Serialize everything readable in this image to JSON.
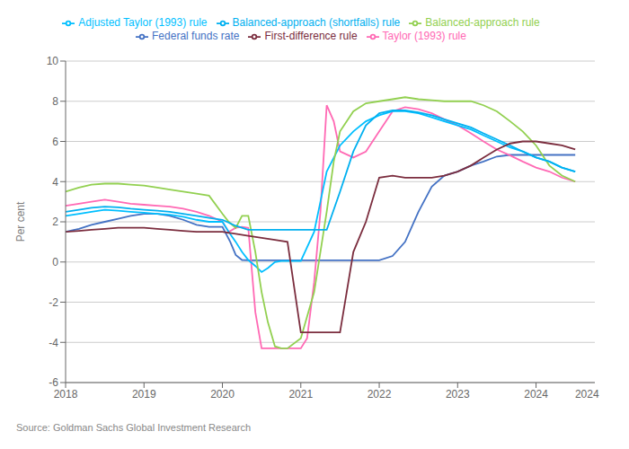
{
  "chart_data": {
    "type": "line",
    "ylabel": "Per cent",
    "source": "Source: Goldman Sachs Global Investment Research",
    "ylim": [
      -6,
      10
    ],
    "yticks": [
      -6,
      -4,
      -2,
      0,
      2,
      4,
      6,
      8,
      10
    ],
    "xlim": [
      2018.0,
      2024.75
    ],
    "xticks": [
      2018,
      2019,
      2020,
      2021,
      2022,
      2023,
      2024
    ],
    "grid": true,
    "legend": "top",
    "annotations": [
      {
        "text": "2024",
        "x": 2024.65
      }
    ],
    "series": [
      {
        "name": "Federal funds rate",
        "color": "#4472C4",
        "x": [
          2018.0,
          2018.17,
          2018.33,
          2018.5,
          2018.67,
          2018.83,
          2019.0,
          2019.17,
          2019.33,
          2019.5,
          2019.67,
          2019.83,
          2020.0,
          2020.1,
          2020.17,
          2020.25,
          2020.33,
          2020.5,
          2020.67,
          2020.83,
          2021.0,
          2021.17,
          2021.33,
          2021.5,
          2021.67,
          2021.83,
          2022.0,
          2022.17,
          2022.33,
          2022.5,
          2022.67,
          2022.83,
          2023.0,
          2023.17,
          2023.33,
          2023.5,
          2023.67,
          2023.83,
          2024.0,
          2024.17,
          2024.33,
          2024.5
        ],
        "values": [
          1.5,
          1.65,
          1.85,
          2.0,
          2.15,
          2.3,
          2.4,
          2.4,
          2.3,
          2.1,
          1.85,
          1.75,
          1.75,
          1.0,
          0.35,
          0.1,
          0.08,
          0.08,
          0.08,
          0.08,
          0.08,
          0.08,
          0.08,
          0.08,
          0.08,
          0.08,
          0.08,
          0.3,
          1.0,
          2.5,
          3.75,
          4.3,
          4.5,
          4.8,
          5.0,
          5.25,
          5.33,
          5.33,
          5.33,
          5.33,
          5.33,
          5.33
        ]
      },
      {
        "name": "Taylor (1993) rule",
        "color": "#FF69B4",
        "x": [
          2018.0,
          2018.17,
          2018.33,
          2018.5,
          2018.67,
          2018.83,
          2019.0,
          2019.17,
          2019.33,
          2019.5,
          2019.67,
          2019.83,
          2020.0,
          2020.08,
          2020.17,
          2020.25,
          2020.33,
          2020.42,
          2020.5,
          2021.0,
          2021.08,
          2021.17,
          2021.25,
          2021.33,
          2021.42,
          2021.5,
          2021.67,
          2021.83,
          2022.0,
          2022.17,
          2022.33,
          2022.5,
          2022.67,
          2022.83,
          2023.0,
          2023.17,
          2023.33,
          2023.5,
          2023.67,
          2023.83,
          2024.0,
          2024.17,
          2024.33,
          2024.5
        ],
        "values": [
          2.8,
          2.9,
          3.0,
          3.1,
          3.0,
          2.9,
          2.85,
          2.8,
          2.75,
          2.65,
          2.5,
          2.3,
          2.0,
          1.5,
          1.7,
          1.75,
          1.7,
          -2.5,
          -4.3,
          -4.3,
          -3.8,
          -1.0,
          2.5,
          7.8,
          7.0,
          5.5,
          5.2,
          5.5,
          6.5,
          7.5,
          7.7,
          7.6,
          7.4,
          7.1,
          6.8,
          6.4,
          6.0,
          5.6,
          5.3,
          5.0,
          4.7,
          4.5,
          4.2,
          4.0
        ]
      },
      {
        "name": "Adjusted Taylor (1993) rule",
        "color": "#00BFFF",
        "x": [
          2018.0,
          2018.17,
          2018.33,
          2018.5,
          2018.67,
          2018.83,
          2019.0,
          2019.17,
          2019.33,
          2019.5,
          2019.67,
          2019.83,
          2020.0,
          2020.08,
          2020.17,
          2020.25,
          2020.33,
          2020.42,
          2020.5,
          2020.58,
          2020.67,
          2020.75,
          2020.83,
          2021.0,
          2021.17,
          2021.25,
          2021.33,
          2021.5,
          2021.67,
          2021.83,
          2022.0,
          2022.17,
          2022.33,
          2022.5,
          2022.67,
          2022.83,
          2023.0,
          2023.17,
          2023.33,
          2023.5,
          2023.67,
          2023.83,
          2024.0,
          2024.17,
          2024.33,
          2024.5
        ],
        "values": [
          2.3,
          2.4,
          2.5,
          2.6,
          2.55,
          2.5,
          2.45,
          2.4,
          2.35,
          2.25,
          2.1,
          2.0,
          2.0,
          1.5,
          1.0,
          0.5,
          0.1,
          -0.2,
          -0.5,
          -0.3,
          0.0,
          0.05,
          0.05,
          0.05,
          1.5,
          3.0,
          4.5,
          5.8,
          6.5,
          7.0,
          7.3,
          7.5,
          7.5,
          7.4,
          7.2,
          7.0,
          6.8,
          6.6,
          6.3,
          6.0,
          5.7,
          5.5,
          5.2,
          5.0,
          4.7,
          4.5
        ]
      },
      {
        "name": "Balanced-approach rule",
        "color": "#92D050",
        "x": [
          2018.0,
          2018.17,
          2018.33,
          2018.5,
          2018.67,
          2018.83,
          2019.0,
          2019.17,
          2019.33,
          2019.5,
          2019.67,
          2019.83,
          2020.0,
          2020.08,
          2020.17,
          2020.25,
          2020.33,
          2020.42,
          2020.5,
          2020.58,
          2020.67,
          2020.75,
          2020.83,
          2021.0,
          2021.17,
          2021.25,
          2021.33,
          2021.42,
          2021.5,
          2021.67,
          2021.83,
          2022.0,
          2022.17,
          2022.33,
          2022.5,
          2022.67,
          2022.83,
          2023.0,
          2023.17,
          2023.33,
          2023.5,
          2023.67,
          2023.83,
          2024.0,
          2024.17,
          2024.33,
          2024.5
        ],
        "values": [
          3.5,
          3.7,
          3.85,
          3.9,
          3.9,
          3.85,
          3.8,
          3.7,
          3.6,
          3.5,
          3.4,
          3.3,
          2.4,
          2.0,
          1.7,
          2.3,
          2.3,
          0.5,
          -1.5,
          -3.0,
          -4.2,
          -4.3,
          -4.3,
          -3.8,
          -1.5,
          0.5,
          2.5,
          5.0,
          6.5,
          7.5,
          7.9,
          8.0,
          8.1,
          8.2,
          8.1,
          8.05,
          8.0,
          8.0,
          8.0,
          7.8,
          7.5,
          7.0,
          6.5,
          5.8,
          4.8,
          4.3,
          4.0
        ]
      },
      {
        "name": "Balanced-approach (shortfalls) rule",
        "color": "#00B0F0",
        "x": [
          2018.0,
          2018.17,
          2018.33,
          2018.5,
          2018.67,
          2018.83,
          2019.0,
          2019.17,
          2019.33,
          2019.5,
          2019.67,
          2019.83,
          2020.0,
          2020.17,
          2020.33,
          2020.5,
          2020.67,
          2020.83,
          2021.0,
          2021.17,
          2021.25,
          2021.33,
          2021.5,
          2021.67,
          2021.83,
          2022.0,
          2022.17,
          2022.33,
          2022.5,
          2022.67,
          2022.83,
          2023.0,
          2023.17,
          2023.33,
          2023.5,
          2023.67,
          2023.83,
          2024.0,
          2024.17,
          2024.33,
          2024.5
        ],
        "values": [
          2.5,
          2.6,
          2.7,
          2.75,
          2.72,
          2.65,
          2.6,
          2.55,
          2.5,
          2.4,
          2.3,
          2.2,
          2.1,
          1.8,
          1.6,
          1.6,
          1.6,
          1.6,
          1.6,
          1.6,
          1.6,
          1.6,
          3.5,
          5.5,
          6.8,
          7.4,
          7.55,
          7.55,
          7.45,
          7.3,
          7.1,
          6.9,
          6.7,
          6.4,
          6.1,
          5.8,
          5.5,
          5.2,
          5.0,
          4.7,
          4.5
        ]
      },
      {
        "name": "First-difference rule",
        "color": "#7B2D3E",
        "x": [
          2018.0,
          2018.17,
          2018.33,
          2018.5,
          2018.67,
          2018.83,
          2019.0,
          2019.17,
          2019.33,
          2019.5,
          2019.67,
          2019.83,
          2020.0,
          2020.17,
          2020.33,
          2020.5,
          2020.67,
          2020.83,
          2021.0,
          2021.17,
          2021.33,
          2021.5,
          2021.67,
          2021.83,
          2022.0,
          2022.17,
          2022.33,
          2022.5,
          2022.67,
          2022.83,
          2023.0,
          2023.17,
          2023.33,
          2023.5,
          2023.67,
          2023.83,
          2024.0,
          2024.17,
          2024.33,
          2024.5
        ],
        "values": [
          1.5,
          1.55,
          1.6,
          1.65,
          1.7,
          1.7,
          1.7,
          1.65,
          1.6,
          1.55,
          1.5,
          1.5,
          1.5,
          1.4,
          1.3,
          1.2,
          1.1,
          1.0,
          -3.5,
          -3.5,
          -3.5,
          -3.5,
          0.5,
          2.0,
          4.2,
          4.3,
          4.2,
          4.2,
          4.2,
          4.3,
          4.5,
          4.8,
          5.2,
          5.6,
          5.9,
          6.0,
          6.0,
          5.9,
          5.8,
          5.6
        ]
      }
    ]
  }
}
